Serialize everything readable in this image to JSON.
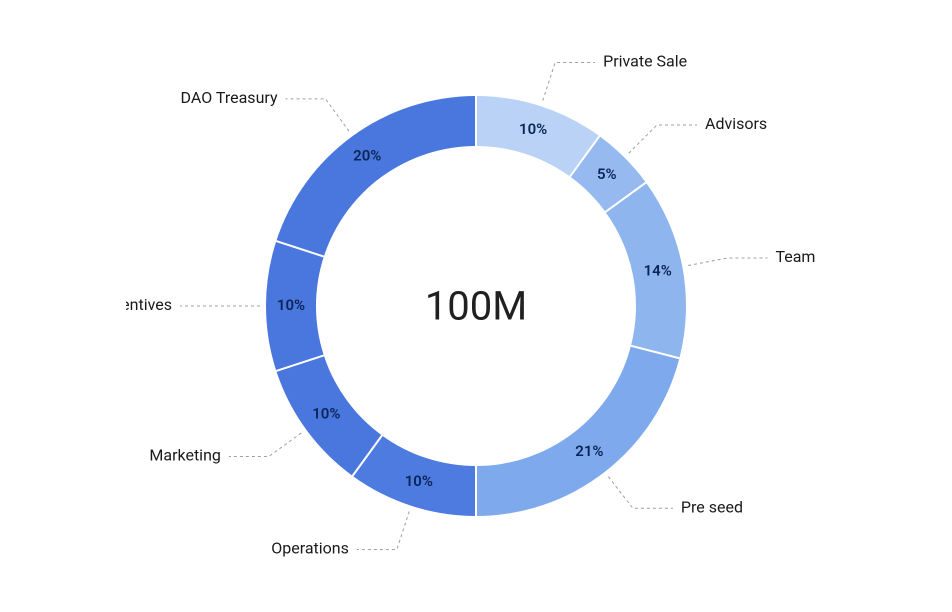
{
  "chart": {
    "type": "donut",
    "center_label": "100M",
    "center_fontsize": 40,
    "background_color": "#ffffff",
    "outer_radius": 210,
    "inner_radius": 160,
    "label_radius": 280,
    "percent_fontsize": 15,
    "label_fontsize": 16,
    "separator_color": "#ffffff",
    "separator_width": 2,
    "leader_color": "#9aa0a6",
    "leader_dash": "3 3",
    "start_angle_deg": 0,
    "slices": [
      {
        "label": "Private Sale",
        "value": 10,
        "percent_text": "10%",
        "color": "#b9d2f6",
        "label_side": "right"
      },
      {
        "label": "Advisors",
        "value": 5,
        "percent_text": "5%",
        "color": "#96baef",
        "label_side": "right"
      },
      {
        "label": "Team",
        "value": 14,
        "percent_text": "14%",
        "color": "#8eb5ee",
        "label_side": "right"
      },
      {
        "label": "Pre seed",
        "value": 21,
        "percent_text": "21%",
        "color": "#7ea9ec",
        "label_side": "right"
      },
      {
        "label": "Operations",
        "value": 10,
        "percent_text": "10%",
        "color": "#4e7be0",
        "label_side": "left"
      },
      {
        "label": "Marketing",
        "value": 10,
        "percent_text": "10%",
        "color": "#4a77dd",
        "label_side": "left"
      },
      {
        "label": "Incentives",
        "value": 10,
        "percent_text": "10%",
        "color": "#4a77dd",
        "label_side": "left"
      },
      {
        "label": "DAO Treasury",
        "value": 20,
        "percent_text": "20%",
        "color": "#4a77dd",
        "label_side": "left"
      }
    ]
  }
}
